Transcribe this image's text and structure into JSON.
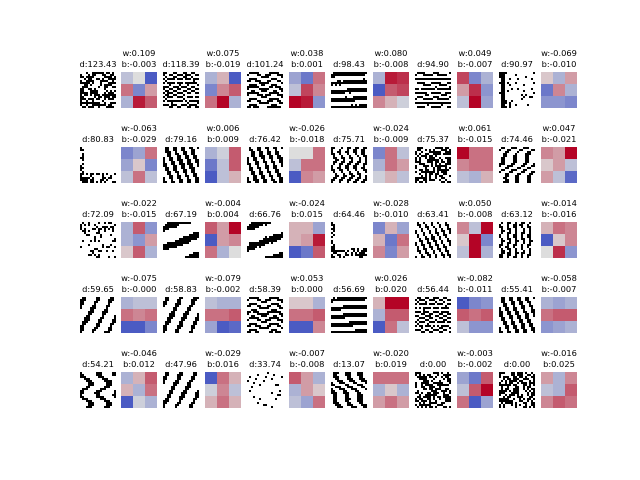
{
  "chart_data": {
    "type": "heatmap",
    "title": "",
    "grid": false,
    "colormap_binary": "gray",
    "colormap_weights": "coolwarm",
    "rows": [
      {
        "patterns": [
          {
            "label": "d:123.43",
            "style": "dense-dots"
          },
          {
            "label": "d:118.39",
            "style": "fine-noise"
          },
          {
            "label": "d:101.24",
            "style": "wavy-horizontal"
          },
          {
            "label": "d:98.43",
            "style": "horizontal-bands"
          },
          {
            "label": "d:94.90",
            "style": "horizontal-bands-fine"
          },
          {
            "label": "d:90.97",
            "style": "white-frame"
          }
        ],
        "weights": [
          {
            "w": "w:0.109",
            "b": "b:-0.003",
            "grid": [
              [
                -0.2,
                0.0,
                -0.9
              ],
              [
                0.5,
                -0.6,
                0.3
              ],
              [
                -0.3,
                0.9,
                0.6
              ]
            ]
          },
          {
            "w": "w:0.075",
            "b": "b:-0.019",
            "grid": [
              [
                -0.3,
                0.2,
                -0.9
              ],
              [
                -0.6,
                0.4,
                0.6
              ],
              [
                0.5,
                1.0,
                -0.3
              ]
            ]
          },
          {
            "w": "w:0.038",
            "b": "b:0.001",
            "grid": [
              [
                -0.4,
                -0.7,
                0.5
              ],
              [
                -0.2,
                0.7,
                0.4
              ],
              [
                1.0,
                0.9,
                -0.5
              ]
            ]
          },
          {
            "w": "w:0.080",
            "b": "b:-0.008",
            "grid": [
              [
                -0.3,
                0.9,
                0.8
              ],
              [
                -0.9,
                0.6,
                0.7
              ],
              [
                0.4,
                0.2,
                -0.1
              ]
            ]
          },
          {
            "w": "w:0.049",
            "b": "b:-0.007",
            "grid": [
              [
                0.7,
                -0.6,
                -0.3
              ],
              [
                0.3,
                0.8,
                -0.5
              ],
              [
                -0.2,
                1.0,
                -0.4
              ]
            ]
          },
          {
            "w": "w:-0.069",
            "b": "b:-0.010",
            "grid": [
              [
                0.1,
                -0.3,
                0.3
              ],
              [
                -0.7,
                0.4,
                -0.3
              ],
              [
                -0.5,
                -0.5,
                -0.6
              ]
            ]
          }
        ]
      },
      {
        "patterns": [
          {
            "label": "d:80.83",
            "style": "mostly-white"
          },
          {
            "label": "d:79.16",
            "style": "diagonal-stripes"
          },
          {
            "label": "d:76.42",
            "style": "diagonal-stripes-2"
          },
          {
            "label": "d:75.71",
            "style": "wavy-vertical"
          },
          {
            "label": "d:75.37",
            "style": "dense-dots-2"
          },
          {
            "label": "d:74.46",
            "style": "diagonal-wave"
          }
        ],
        "weights": [
          {
            "w": "w:-0.063",
            "b": "b:-0.029",
            "grid": [
              [
                -0.6,
                -0.4,
                0.5
              ],
              [
                -0.4,
                0.1,
                -0.6
              ],
              [
                -0.2,
                0.5,
                -0.2
              ]
            ]
          },
          {
            "w": "w:0.006",
            "b": "b:0.009",
            "grid": [
              [
                -0.3,
                -0.1,
                0.6
              ],
              [
                -0.7,
                -0.2,
                0.6
              ],
              [
                -0.9,
                -0.2,
                0.2
              ]
            ]
          },
          {
            "w": "w:-0.026",
            "b": "b:-0.018",
            "grid": [
              [
                0.0,
                0.0,
                0.5
              ],
              [
                -0.2,
                0.5,
                0.5
              ],
              [
                -0.9,
                0.4,
                0.3
              ]
            ]
          },
          {
            "w": "w:-0.024",
            "b": "b:-0.009",
            "grid": [
              [
                -0.6,
                0.5,
                -0.2
              ],
              [
                -0.3,
                0.5,
                0.3
              ],
              [
                -0.1,
                0.2,
                -0.2
              ]
            ]
          },
          {
            "w": "w:0.061",
            "b": "b:-0.015",
            "grid": [
              [
                1.0,
                0.5,
                0.5
              ],
              [
                0.4,
                0.5,
                0.5
              ],
              [
                -0.2,
                -0.3,
                0.2
              ]
            ]
          },
          {
            "w": "w:0.047",
            "b": "b:-0.021",
            "grid": [
              [
                0.4,
                0.3,
                1.0
              ],
              [
                0.1,
                0.3,
                -0.2
              ],
              [
                0.3,
                -0.2,
                -0.8
              ]
            ]
          }
        ]
      },
      {
        "patterns": [
          {
            "label": "d:72.09",
            "style": "sparse-dots"
          },
          {
            "label": "d:67.19",
            "style": "thick-diagonal"
          },
          {
            "label": "d:66.76",
            "style": "thick-diagonal-2"
          },
          {
            "label": "d:64.46",
            "style": "mostly-white-2"
          },
          {
            "label": "d:63.41",
            "style": "diagonal-dashes"
          },
          {
            "label": "d:63.12",
            "style": "vertical-dashes"
          }
        ],
        "weights": [
          {
            "w": "w:-0.022",
            "b": "b:-0.015",
            "grid": [
              [
                -0.3,
                0.6,
                -0.5
              ],
              [
                -0.3,
                -0.5,
                0.3
              ],
              [
                0.1,
                0.6,
                -0.3
              ]
            ]
          },
          {
            "w": "w:-0.004",
            "b": "b:0.004",
            "grid": [
              [
                0.6,
                0.3,
                1.0
              ],
              [
                -0.9,
                0.3,
                0.4
              ],
              [
                0.5,
                -0.3,
                0.0
              ]
            ]
          },
          {
            "w": "w:-0.024",
            "b": "b:0.015",
            "grid": [
              [
                0.2,
                0.2,
                -0.4
              ],
              [
                0.2,
                0.3,
                0.9
              ],
              [
                -0.9,
                -0.7,
                0.6
              ]
            ]
          },
          {
            "w": "w:-0.028",
            "b": "b:-0.010",
            "grid": [
              [
                -0.6,
                0.2,
                -0.4
              ],
              [
                0.2,
                -0.7,
                0.5
              ],
              [
                0.4,
                -0.6,
                0.3
              ]
            ]
          },
          {
            "w": "w:0.050",
            "b": "b:-0.008",
            "grid": [
              [
                0.4,
                -0.2,
                1.0
              ],
              [
                0.1,
                1.0,
                -0.6
              ],
              [
                -0.2,
                1.0,
                -0.3
              ]
            ]
          },
          {
            "w": "w:-0.014",
            "b": "b:-0.016",
            "grid": [
              [
                0.2,
                0.5,
                0.4
              ],
              [
                -0.9,
                0.1,
                0.4
              ],
              [
                0.0,
                0.8,
                -0.5
              ]
            ]
          }
        ]
      },
      {
        "patterns": [
          {
            "label": "d:59.65",
            "style": "vertical-blobs"
          },
          {
            "label": "d:58.83",
            "style": "vertical-blobs-2"
          },
          {
            "label": "d:58.39",
            "style": "wavy-horizontal-2"
          },
          {
            "label": "d:56.69",
            "style": "horizontal-bands-2"
          },
          {
            "label": "d:56.44",
            "style": "fine-noise-2"
          },
          {
            "label": "d:55.41",
            "style": "diagonal-stripes-3"
          }
        ],
        "weights": [
          {
            "w": "w:-0.075",
            "b": "b:-0.000",
            "grid": [
              [
                -0.3,
                -0.2,
                -0.2
              ],
              [
                0.5,
                0.4,
                0.5
              ],
              [
                -0.9,
                -0.9,
                -0.6
              ]
            ]
          },
          {
            "w": "w:-0.079",
            "b": "b:-0.002",
            "grid": [
              [
                -0.2,
                -0.3,
                -0.3
              ],
              [
                0.5,
                0.5,
                0.6
              ],
              [
                -0.4,
                -0.9,
                -0.8
              ]
            ]
          },
          {
            "w": "w:0.053",
            "b": "b:0.000",
            "grid": [
              [
                0.1,
                0.1,
                -0.3
              ],
              [
                0.5,
                0.5,
                0.6
              ],
              [
                -0.9,
                -0.9,
                0.4
              ]
            ]
          },
          {
            "w": "w:0.026",
            "b": "b:0.020",
            "grid": [
              [
                0.2,
                1.0,
                1.0
              ],
              [
                -0.3,
                0.6,
                0.6
              ],
              [
                -0.9,
                0.5,
                -0.2
              ]
            ]
          },
          {
            "w": "w:-0.082",
            "b": "b:-0.011",
            "grid": [
              [
                -0.9,
                -0.6,
                -0.5
              ],
              [
                0.6,
                0.5,
                0.6
              ],
              [
                -0.2,
                -0.5,
                -0.5
              ]
            ]
          },
          {
            "w": "w:-0.058",
            "b": "b:-0.007",
            "grid": [
              [
                -0.3,
                -0.4,
                -0.3
              ],
              [
                0.5,
                0.6,
                0.6
              ],
              [
                -0.5,
                -0.4,
                -0.3
              ]
            ]
          }
        ]
      },
      {
        "patterns": [
          {
            "label": "d:54.21",
            "style": "blob-curve"
          },
          {
            "label": "d:47.96",
            "style": "vertical-blobs-3"
          },
          {
            "label": "d:33.74",
            "style": "sparse-lines"
          },
          {
            "label": "d:13.07",
            "style": "diagonal-blobs"
          },
          {
            "label": "d:0.00",
            "style": "uniform-noise"
          },
          {
            "label": "d:0.00",
            "style": "uniform-noise-2"
          }
        ],
        "weights": [
          {
            "w": "w:-0.046",
            "b": "b:0.012",
            "grid": [
              [
                -0.3,
                0.2,
                0.6
              ],
              [
                0.2,
                -0.3,
                0.5
              ],
              [
                -0.9,
                -0.1,
                -0.3
              ]
            ]
          },
          {
            "w": "w:-0.029",
            "b": "b:0.016",
            "grid": [
              [
                -0.9,
                0.5,
                0.2
              ],
              [
                -0.1,
                0.4,
                -0.2
              ],
              [
                0.2,
                0.5,
                0.2
              ]
            ]
          },
          {
            "w": "w:-0.007",
            "b": "b:-0.008",
            "grid": [
              [
                0.6,
                0.3,
                -0.3
              ],
              [
                -0.3,
                0.3,
                0.1
              ],
              [
                -0.2,
                -0.4,
                0.5
              ]
            ]
          },
          {
            "w": "w:-0.020",
            "b": "b:0.019",
            "grid": [
              [
                0.5,
                0.5,
                0.5
              ],
              [
                -0.3,
                0.1,
                -0.3
              ],
              [
                0.3,
                0.5,
                0.3
              ]
            ]
          },
          {
            "w": "w:-0.003",
            "b": "b:-0.002",
            "grid": [
              [
                -0.4,
                -0.7,
                0.6
              ],
              [
                -0.2,
                0.6,
                1.0
              ],
              [
                0.5,
                -0.9,
                -0.4
              ]
            ]
          },
          {
            "w": "w:-0.016",
            "b": "b:0.025",
            "grid": [
              [
                0.3,
                -0.3,
                0.4
              ],
              [
                -0.2,
                -0.3,
                0.6
              ],
              [
                0.4,
                0.6,
                0.5
              ]
            ]
          }
        ]
      }
    ]
  }
}
